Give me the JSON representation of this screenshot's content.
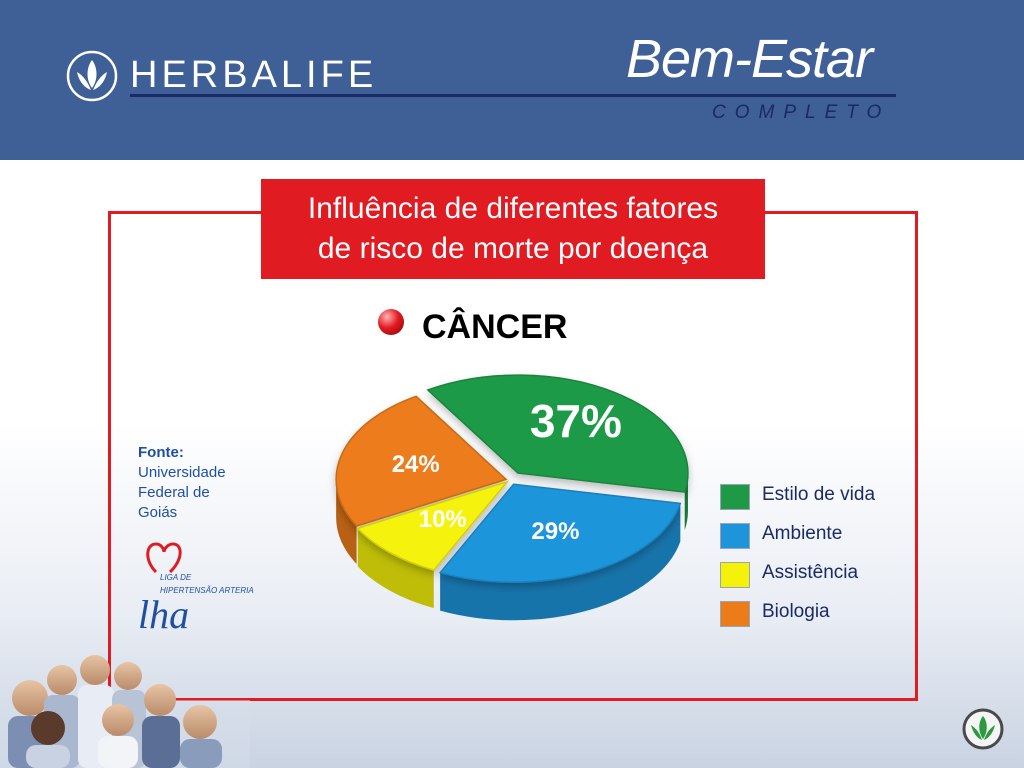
{
  "header": {
    "brand": "HERBALIFE",
    "product_title": "Bem-Estar",
    "product_subtitle": "COMPLETO"
  },
  "title_lines": [
    "Influência de diferentes fatores",
    "de risco de morte por doença"
  ],
  "section_heading": "CÂNCER",
  "source": {
    "label": "Fonte:",
    "text": "Universidade Federal de Goiás"
  },
  "lha_logo": {
    "caption_line1": "LIGA DE",
    "caption_line2": "HIPERTENSÃO ARTERIAL",
    "letters": "lha"
  },
  "chart_data": {
    "type": "pie",
    "title": "",
    "labels": [
      "Estilo de vida",
      "Ambiente",
      "Assistência",
      "Biologia"
    ],
    "values": [
      37,
      29,
      10,
      24
    ],
    "value_labels": [
      "37%",
      "29%",
      "10%",
      "24%"
    ],
    "colors": [
      "#1e9a47",
      "#1e95db",
      "#f5f20a",
      "#ec7c1a"
    ],
    "legend_position": "right"
  },
  "colors": {
    "header_bg": "#3f5f97",
    "accent_red": "#e11b22",
    "navy": "#1a2a66",
    "source_blue": "#1f4fa3"
  }
}
